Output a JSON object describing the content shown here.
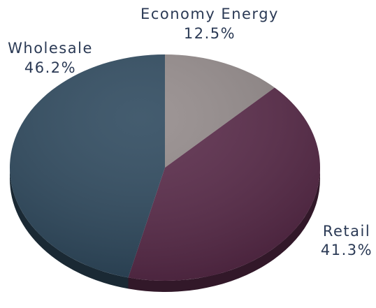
{
  "chart_data": {
    "type": "pie",
    "style": "3d",
    "slices": [
      {
        "label": "Economy Energy",
        "value_label": "12.5%",
        "value": 12.5,
        "color": "#948b8b"
      },
      {
        "label": "Retail",
        "value_label": "41.3%",
        "value": 41.3,
        "color": "#5a2b4a"
      },
      {
        "label": "Wholesale",
        "value_label": "46.2%",
        "value": 46.2,
        "color": "#2f4a5f"
      }
    ],
    "legend": "none",
    "label_color": "#2b3a55"
  }
}
